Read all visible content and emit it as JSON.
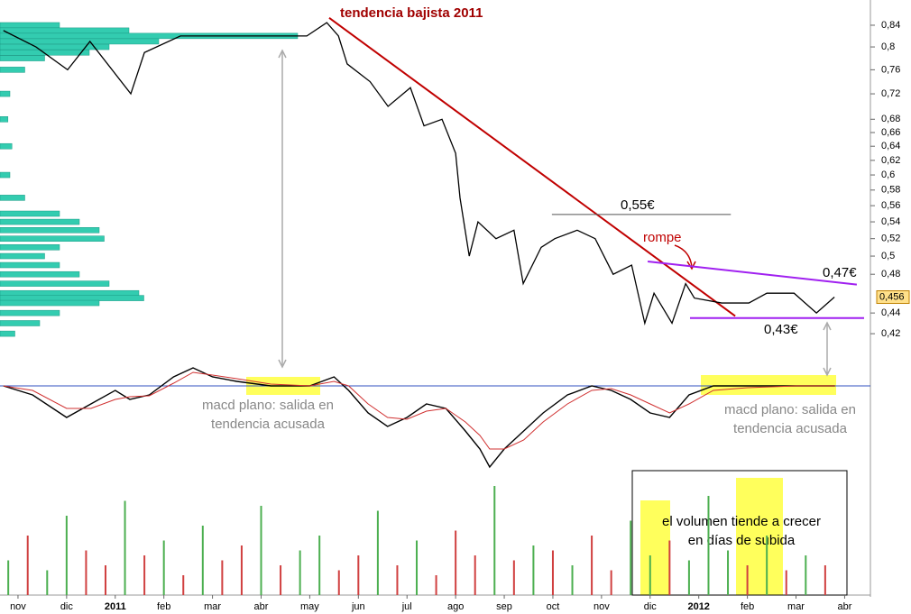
{
  "chart_data": {
    "type": "line",
    "scale": "log",
    "x": [
      -0.3,
      0.37,
      1.02,
      1.48,
      2.32,
      2.6,
      3.34,
      4.45,
      5.19,
      5.94,
      6.35,
      6.59,
      6.77,
      7.24,
      7.61,
      8.07,
      8.35,
      8.72,
      9.0,
      9.09,
      9.28,
      9.46,
      9.83,
      10.2,
      10.39,
      10.76,
      11.04,
      11.5,
      11.87,
      12.24,
      12.62,
      12.89,
      13.08,
      13.45,
      13.73,
      13.91,
      14.47,
      15.03,
      15.4,
      15.96,
      16.42,
      16.79
    ],
    "values": [
      0.83,
      0.8,
      0.76,
      0.81,
      0.72,
      0.79,
      0.82,
      0.82,
      0.82,
      0.82,
      0.845,
      0.82,
      0.77,
      0.74,
      0.7,
      0.73,
      0.67,
      0.68,
      0.63,
      0.57,
      0.5,
      0.54,
      0.52,
      0.53,
      0.47,
      0.51,
      0.52,
      0.53,
      0.52,
      0.48,
      0.49,
      0.43,
      0.46,
      0.43,
      0.47,
      0.455,
      0.45,
      0.45,
      0.46,
      0.46,
      0.44,
      0.456
    ],
    "color": "#000000",
    "xlim": [
      -0.37,
      17.53
    ],
    "ylim": [
      0.41,
      0.865
    ],
    "xticks": [
      {
        "value": 0,
        "label": "nov"
      },
      {
        "value": 1,
        "label": "dic"
      },
      {
        "value": 2,
        "label": "2011"
      },
      {
        "value": 3,
        "label": "feb"
      },
      {
        "value": 4,
        "label": "mar"
      },
      {
        "value": 5,
        "label": "abr"
      },
      {
        "value": 6,
        "label": "may"
      },
      {
        "value": 7,
        "label": "jun"
      },
      {
        "value": 8,
        "label": "jul"
      },
      {
        "value": 9,
        "label": "ago"
      },
      {
        "value": 10,
        "label": "sep"
      },
      {
        "value": 11,
        "label": "oct"
      },
      {
        "value": 12,
        "label": "nov"
      },
      {
        "value": 13,
        "label": "dic"
      },
      {
        "value": 14,
        "label": "2012"
      },
      {
        "value": 15,
        "label": "feb"
      },
      {
        "value": 16,
        "label": "mar"
      },
      {
        "value": 17,
        "label": "abr"
      }
    ],
    "yticks": [
      {
        "value": 0.84,
        "label": "0,84"
      },
      {
        "value": 0.8,
        "label": "0,8"
      },
      {
        "value": 0.76,
        "label": "0,76"
      },
      {
        "value": 0.72,
        "label": "0,72"
      },
      {
        "value": 0.68,
        "label": "0,68"
      },
      {
        "value": 0.66,
        "label": "0,66"
      },
      {
        "value": 0.64,
        "label": "0,64"
      },
      {
        "value": 0.62,
        "label": "0,62"
      },
      {
        "value": 0.6,
        "label": "0,6"
      },
      {
        "value": 0.58,
        "label": "0,58"
      },
      {
        "value": 0.56,
        "label": "0,56"
      },
      {
        "value": 0.54,
        "label": "0,54"
      },
      {
        "value": 0.52,
        "label": "0,52"
      },
      {
        "value": 0.5,
        "label": "0,5"
      },
      {
        "value": 0.48,
        "label": "0,48"
      },
      {
        "value": 0.44,
        "label": "0,44"
      },
      {
        "value": 0.42,
        "label": "0,42"
      }
    ],
    "last_price": {
      "value": 0.456,
      "label": "0,456"
    },
    "trendlines": [
      {
        "color": "#c00000",
        "x": [
          6.4,
          14.75
        ],
        "values": [
          0.854,
          0.437
        ]
      },
      {
        "color": "#a020f0",
        "x": [
          12.95,
          17.25
        ],
        "values": [
          0.494,
          0.469
        ]
      },
      {
        "color": "#a020f0",
        "x": [
          13.82,
          17.4
        ],
        "values": [
          0.435,
          0.435
        ]
      },
      {
        "color": "#555555",
        "x": [
          10.98,
          14.66
        ],
        "values": [
          0.549,
          0.549
        ]
      }
    ],
    "volume_profile": {
      "color": "#33ccb0",
      "prices": [
        0.84,
        0.83,
        0.82,
        0.81,
        0.8,
        0.79,
        0.78,
        0.76,
        0.72,
        0.68,
        0.64,
        0.6,
        0.57,
        0.55,
        0.54,
        0.53,
        0.52,
        0.51,
        0.5,
        0.49,
        0.48,
        0.47,
        0.46,
        0.455,
        0.45,
        0.44,
        0.43,
        0.42
      ],
      "values": [
        60,
        130,
        300,
        160,
        110,
        90,
        45,
        25,
        10,
        8,
        12,
        10,
        25,
        60,
        80,
        100,
        105,
        60,
        45,
        60,
        80,
        110,
        140,
        145,
        100,
        60,
        40,
        15
      ]
    },
    "macd": {
      "x": [
        -0.3,
        0.3,
        1.0,
        1.5,
        2.0,
        2.3,
        2.7,
        3.2,
        3.6,
        4.0,
        4.5,
        5.2,
        6.0,
        6.5,
        6.8,
        7.2,
        7.6,
        8.0,
        8.4,
        8.8,
        9.2,
        9.5,
        9.7,
        10.0,
        10.4,
        10.8,
        11.3,
        11.8,
        12.2,
        12.6,
        13.0,
        13.4,
        13.8,
        14.3,
        15,
        16,
        16.8
      ],
      "series": [
        {
          "name": "macd",
          "color": "#000000",
          "values": [
            0,
            -1,
            -3.5,
            -2,
            -0.5,
            -1.5,
            -1,
            1,
            2,
            1,
            0.5,
            0,
            0,
            1,
            -0.5,
            -3,
            -4.5,
            -3.5,
            -2,
            -2.5,
            -5,
            -7,
            -9,
            -7,
            -5,
            -3,
            -1,
            0,
            -0.5,
            -1.5,
            -3,
            -3.5,
            -1,
            0,
            0,
            0,
            0
          ]
        },
        {
          "name": "signal",
          "color": "#d03030",
          "values": [
            0,
            -0.5,
            -2.5,
            -2.5,
            -1.5,
            -1.2,
            -1.1,
            0.3,
            1.5,
            1.2,
            0.8,
            0.2,
            0,
            0.5,
            0,
            -2,
            -3.5,
            -3.7,
            -2.8,
            -2.5,
            -4,
            -5.5,
            -7,
            -7,
            -6,
            -4,
            -2,
            -0.5,
            -0.3,
            -1,
            -2,
            -3,
            -2,
            -0.5,
            -0.2,
            0,
            0
          ]
        }
      ]
    },
    "volume": {
      "x": [
        -0.2,
        0.2,
        0.6,
        1.0,
        1.4,
        1.8,
        2.2,
        2.6,
        3.0,
        3.4,
        3.8,
        4.2,
        4.6,
        5.0,
        5.4,
        5.8,
        6.2,
        6.6,
        7.0,
        7.4,
        7.8,
        8.2,
        8.6,
        9.0,
        9.4,
        9.8,
        10.2,
        10.6,
        11.0,
        11.4,
        11.8,
        12.2,
        12.6,
        13.0,
        13.4,
        13.8,
        14.2,
        14.6,
        15.0,
        15.4,
        15.8,
        16.2,
        16.6
      ],
      "values": [
        35,
        60,
        25,
        80,
        45,
        30,
        95,
        40,
        55,
        20,
        70,
        35,
        50,
        90,
        30,
        45,
        60,
        25,
        40,
        85,
        30,
        55,
        20,
        65,
        40,
        110,
        35,
        50,
        45,
        30,
        60,
        25,
        75,
        40,
        55,
        35,
        100,
        45,
        30,
        60,
        25,
        40,
        30
      ],
      "colors": [
        "#4caf50",
        "#d04040",
        "#4caf50",
        "#4caf50",
        "#d04040",
        "#d04040",
        "#4caf50",
        "#d04040",
        "#4caf50",
        "#d04040",
        "#4caf50",
        "#d04040",
        "#d04040",
        "#4caf50",
        "#d04040",
        "#4caf50",
        "#4caf50",
        "#d04040",
        "#d04040",
        "#4caf50",
        "#d04040",
        "#4caf50",
        "#d04040",
        "#d04040",
        "#d04040",
        "#4caf50",
        "#d04040",
        "#4caf50",
        "#d04040",
        "#4caf50",
        "#d04040",
        "#d04040",
        "#4caf50",
        "#4caf50",
        "#d04040",
        "#4caf50",
        "#4caf50",
        "#4caf50",
        "#d04040",
        "#4caf50",
        "#d04040",
        "#4caf50",
        "#d04040"
      ]
    },
    "annotations": {
      "trend": "tendencia bajista 2011",
      "level_high": "0,55€",
      "break": "rompe",
      "level_mid": "0,47€",
      "level_low": "0,43€",
      "macd_note_1": [
        "macd plano: salida en",
        "tendencia acusada"
      ],
      "macd_note_2": [
        "macd plano: salida en",
        "tendencia acusada"
      ],
      "volume_note": [
        "el volumen tiende a crecer",
        "en días de subida"
      ]
    }
  }
}
